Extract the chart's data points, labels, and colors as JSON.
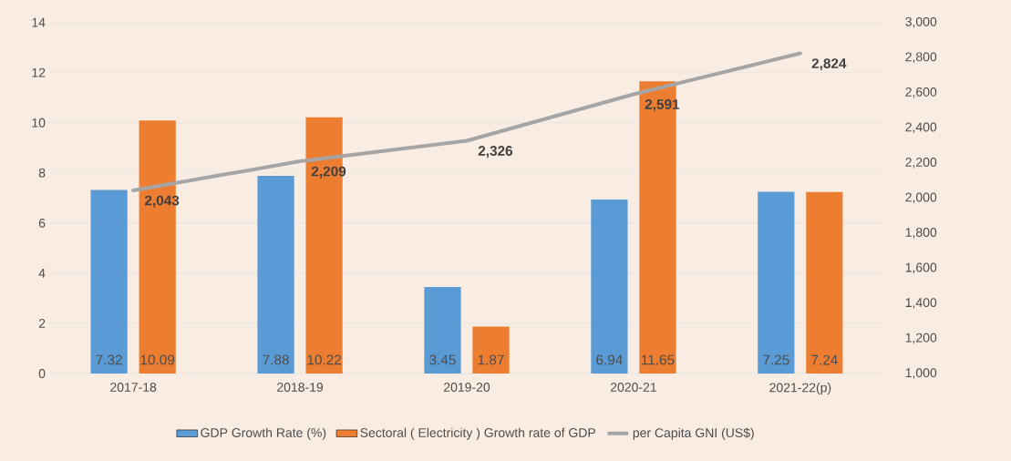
{
  "chart_data": {
    "type": "bar",
    "categories": [
      "2017-18",
      "2018-19",
      "2019-20",
      "2020-21",
      "2021-22(p)"
    ],
    "series": [
      {
        "name": "GDP Growth Rate (%)",
        "color": "#5b9bd5",
        "values": [
          7.32,
          7.88,
          3.45,
          6.94,
          7.25
        ],
        "value_labels": [
          "7.32",
          "7.88",
          "3.45",
          "6.94",
          "7.25"
        ]
      },
      {
        "name": "Sectoral ( Electricity ) Growth rate of GDP",
        "color": "#ed7d31",
        "values": [
          10.09,
          10.22,
          1.87,
          11.65,
          7.24
        ],
        "value_labels": [
          "10.09",
          "10.22",
          "1.87",
          "11.65",
          "7.24"
        ]
      },
      {
        "name": "per Capita GNI (US$)",
        "type": "line",
        "axis": "y2",
        "color": "#a5a5a5",
        "values": [
          2043,
          2209,
          2326,
          2591,
          2824
        ],
        "value_labels": [
          "2,043",
          "2,209",
          "2,326",
          "2,591",
          "2,824"
        ]
      }
    ],
    "ylim": [
      0,
      14
    ],
    "yticks": [
      0,
      2,
      4,
      6,
      8,
      10,
      12,
      14
    ],
    "y2lim": [
      1000,
      3000
    ],
    "y2ticks": [
      {
        "value": 1000,
        "label": "1,000"
      },
      {
        "value": 1200,
        "label": "1,200"
      },
      {
        "value": 1400,
        "label": "1,400"
      },
      {
        "value": 1600,
        "label": "1,600"
      },
      {
        "value": 1800,
        "label": "1,800"
      },
      {
        "value": 2000,
        "label": "2,000"
      },
      {
        "value": 2200,
        "label": "2,200"
      },
      {
        "value": 2400,
        "label": "2,400"
      },
      {
        "value": 2600,
        "label": "2,600"
      },
      {
        "value": 2800,
        "label": "2,800"
      },
      {
        "value": 3000,
        "label": "3,000"
      }
    ],
    "grid": "y",
    "legend": "bottom"
  }
}
